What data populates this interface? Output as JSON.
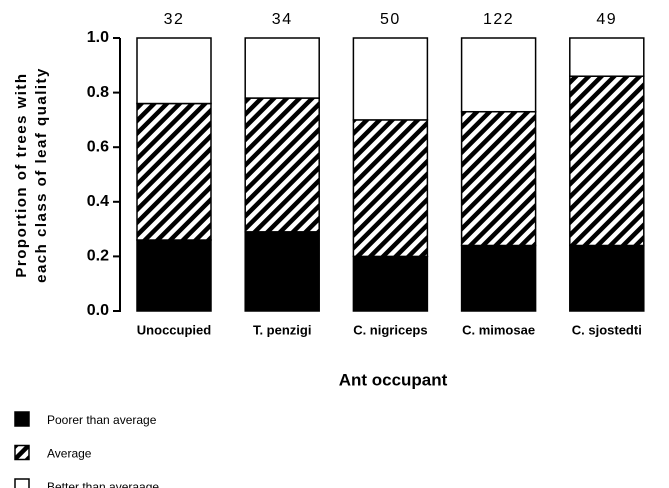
{
  "chart_data": {
    "type": "stacked_bar",
    "ylabel": [
      "Proportion of trees with",
      "each class of leaf quality"
    ],
    "xlabel": "Ant occupant",
    "categories": [
      "Unoccupied",
      "T. penzigi",
      "C. nigriceps",
      "C. mimosae",
      "C. sjostedti"
    ],
    "annotations": [
      "32",
      "34",
      "50",
      "122",
      "49"
    ],
    "series": [
      {
        "name": "Poorer than average",
        "color": "#000000",
        "values": [
          0.26,
          0.29,
          0.2,
          0.24,
          0.24
        ]
      },
      {
        "name": "Average",
        "color": "#000000",
        "pattern": "diagonal-hatch",
        "values": [
          0.5,
          0.49,
          0.5,
          0.49,
          0.62
        ]
      },
      {
        "name": "Better than averaage",
        "color": "#ffffff",
        "values": [
          0.24,
          0.22,
          0.3,
          0.27,
          0.14
        ]
      }
    ],
    "ylim": [
      0,
      1
    ],
    "yticks": [
      {
        "value": 0,
        "label": "0.0"
      },
      {
        "value": 0.2,
        "label": "0.2"
      },
      {
        "value": 0.4,
        "label": "0.4"
      },
      {
        "value": 0.6,
        "label": "0.6"
      },
      {
        "value": 0.8,
        "label": "0.8"
      },
      {
        "value": 1,
        "label": "1.0"
      }
    ]
  }
}
